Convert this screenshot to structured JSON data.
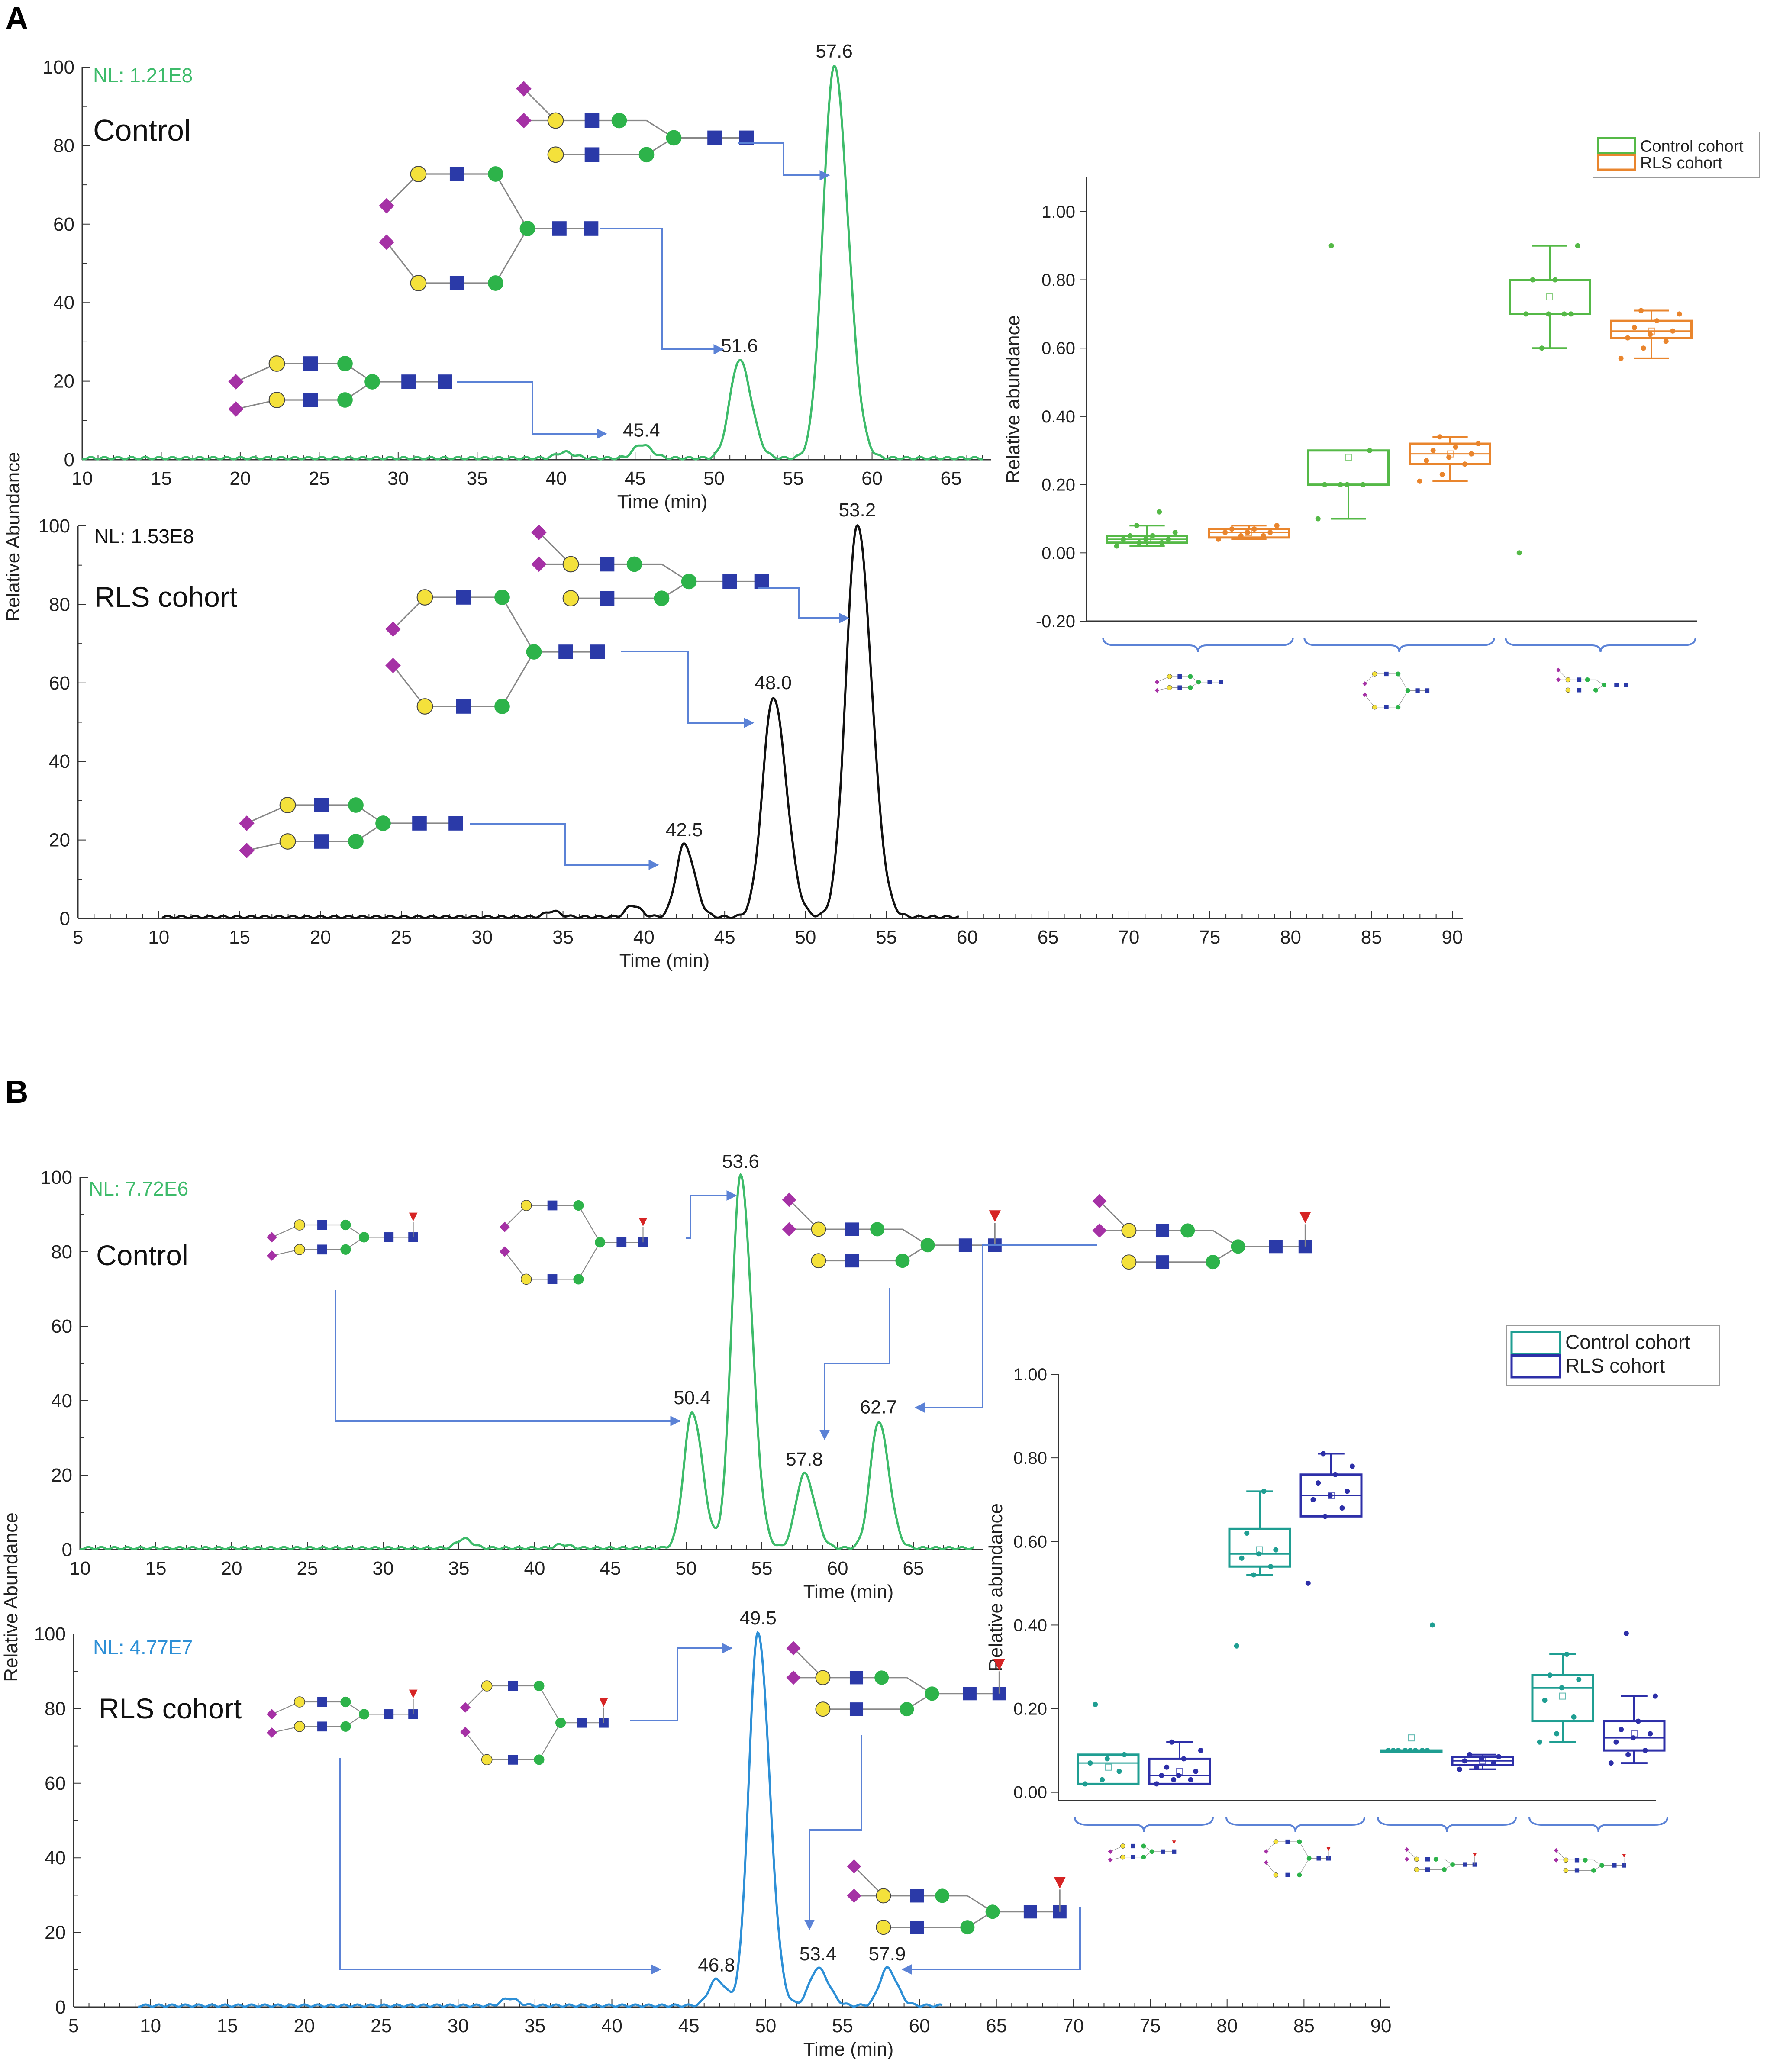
{
  "figure": {
    "panel_a_label": "A",
    "panel_b_label": "B"
  },
  "colors": {
    "control_green": "#3dbb6a",
    "rls_black": "#111111",
    "rls_blue": "#2d8fd6",
    "box_green": "#55b947",
    "box_orange": "#e9852d",
    "box_teal": "#1f9e92",
    "box_navy": "#2d2fa8",
    "arrow": "#5b82d6",
    "gal": "#f4e13b",
    "glcnac": "#2b3aa8",
    "man": "#2db34a",
    "sia": "#a531a5",
    "fuc": "#d62424"
  },
  "chart_data": [
    {
      "id": "A-control",
      "type": "line",
      "title": "",
      "nl_label": "NL: 1.21E8",
      "cohort_label": "Control",
      "xlabel": "Time (min)",
      "ylabel": "Relative Abundance",
      "xlim": [
        10,
        67
      ],
      "ylim": [
        0,
        100
      ],
      "xticks": [
        "10",
        "15",
        "20",
        "25",
        "30",
        "35",
        "40",
        "45",
        "50",
        "55",
        "60",
        "65"
      ],
      "yticks": [
        "0",
        "20",
        "40",
        "60",
        "80",
        "100"
      ],
      "peaks": [
        {
          "rt": 40.5,
          "height": 1.5,
          "width": 0.5,
          "label": ""
        },
        {
          "rt": 45.4,
          "height": 3.5,
          "width": 0.5,
          "label": "45.4"
        },
        {
          "rt": 51.6,
          "height": 25,
          "width": 0.6,
          "label": "51.6"
        },
        {
          "rt": 57.6,
          "height": 100,
          "width": 0.7,
          "label": "57.6"
        }
      ],
      "baseline_start": 10
    },
    {
      "id": "A-rls",
      "type": "line",
      "nl_label": "NL: 1.53E8",
      "cohort_label": "RLS cohort",
      "xlabel": "Time (min)",
      "ylabel": "Relative Abundance",
      "xlim": [
        5,
        90
      ],
      "ylim": [
        0,
        100
      ],
      "xticks": [
        "5",
        "10",
        "15",
        "20",
        "25",
        "30",
        "35",
        "40",
        "45",
        "50",
        "55",
        "60",
        "65",
        "70",
        "75",
        "80",
        "85",
        "90"
      ],
      "yticks": [
        "0",
        "20",
        "40",
        "60",
        "80",
        "100"
      ],
      "peaks": [
        {
          "rt": 34.3,
          "height": 1.5,
          "width": 0.4,
          "label": ""
        },
        {
          "rt": 39.3,
          "height": 3,
          "width": 0.4,
          "label": ""
        },
        {
          "rt": 42.5,
          "height": 18.5,
          "width": 0.5,
          "label": "42.5"
        },
        {
          "rt": 48.0,
          "height": 56,
          "width": 0.65,
          "label": "48.0"
        },
        {
          "rt": 53.2,
          "height": 100,
          "width": 0.7,
          "label": "53.2"
        }
      ],
      "baseline_start": 10.2,
      "baseline_end": 59.5
    },
    {
      "id": "A-box",
      "type": "box",
      "ylabel": "Relative abundance",
      "ylim": [
        -0.2,
        1.1
      ],
      "yticks": [
        "-0.20",
        "0.00",
        "0.20",
        "0.40",
        "0.60",
        "0.80",
        "1.00"
      ],
      "legend": [
        "Control cohort",
        "RLS cohort"
      ],
      "groups": [
        {
          "name": "biantennary disialylated glycan",
          "boxes": [
            {
              "cohort": "Control cohort",
              "q1": 0.03,
              "median": 0.04,
              "q3": 0.05,
              "min": 0.02,
              "max": 0.08,
              "mean": 0.04,
              "points": [
                0.02,
                0.03,
                0.03,
                0.04,
                0.04,
                0.04,
                0.05,
                0.05,
                0.06,
                0.08,
                0.12
              ]
            },
            {
              "cohort": "RLS cohort",
              "q1": 0.045,
              "median": 0.06,
              "q3": 0.07,
              "min": 0.04,
              "max": 0.08,
              "mean": 0.06,
              "points": [
                0.04,
                0.05,
                0.05,
                0.06,
                0.06,
                0.06,
                0.07,
                0.07,
                0.08
              ]
            }
          ]
        },
        {
          "name": "hybrid disialylated glycan",
          "boxes": [
            {
              "cohort": "Control cohort",
              "q1": 0.2,
              "median": 0.2,
              "q3": 0.3,
              "min": 0.1,
              "max": 0.3,
              "mean": 0.28,
              "points": [
                0.1,
                0.2,
                0.2,
                0.2,
                0.2,
                0.3,
                0.9
              ]
            },
            {
              "cohort": "RLS cohort",
              "q1": 0.26,
              "median": 0.29,
              "q3": 0.32,
              "min": 0.21,
              "max": 0.34,
              "mean": 0.29,
              "points": [
                0.21,
                0.23,
                0.26,
                0.27,
                0.28,
                0.29,
                0.3,
                0.31,
                0.32,
                0.34
              ]
            }
          ]
        },
        {
          "name": "biantennary glycan with extension",
          "boxes": [
            {
              "cohort": "Control cohort",
              "q1": 0.7,
              "median": 0.7,
              "q3": 0.8,
              "min": 0.6,
              "max": 0.9,
              "mean": 0.75,
              "points": [
                0.0,
                0.6,
                0.7,
                0.7,
                0.7,
                0.7,
                0.8,
                0.8,
                0.9
              ]
            },
            {
              "cohort": "RLS cohort",
              "q1": 0.63,
              "median": 0.65,
              "q3": 0.68,
              "min": 0.57,
              "max": 0.71,
              "mean": 0.65,
              "points": [
                0.57,
                0.6,
                0.62,
                0.63,
                0.64,
                0.65,
                0.66,
                0.68,
                0.7,
                0.71
              ]
            }
          ]
        }
      ]
    },
    {
      "id": "B-control",
      "type": "line",
      "nl_label": "NL: 7.72E6",
      "cohort_label": "Control",
      "xlabel": "Time (min)",
      "ylabel": "Relative Abundance",
      "xlim": [
        10,
        69
      ],
      "ylim": [
        0,
        100
      ],
      "xticks": [
        "10",
        "15",
        "20",
        "25",
        "30",
        "35",
        "40",
        "45",
        "50",
        "55",
        "60",
        "65"
      ],
      "yticks": [
        "0",
        "20",
        "40",
        "60",
        "80",
        "100"
      ],
      "peaks": [
        {
          "rt": 35.3,
          "height": 2.5,
          "width": 0.45,
          "label": ""
        },
        {
          "rt": 41.8,
          "height": 1,
          "width": 0.4,
          "label": ""
        },
        {
          "rt": 50.4,
          "height": 36.5,
          "width": 0.55,
          "label": "50.4"
        },
        {
          "rt": 53.6,
          "height": 100,
          "width": 0.6,
          "label": "53.6"
        },
        {
          "rt": 57.8,
          "height": 20,
          "width": 0.55,
          "label": "57.8"
        },
        {
          "rt": 62.7,
          "height": 34,
          "width": 0.55,
          "label": "62.7"
        }
      ],
      "baseline_start": 10
    },
    {
      "id": "B-rls",
      "type": "line",
      "nl_label": "NL: 4.77E7",
      "cohort_label": "RLS cohort",
      "xlabel": "Time (min)",
      "ylabel": "Relative Abundance",
      "xlim": [
        5,
        90
      ],
      "ylim": [
        0,
        100
      ],
      "xticks": [
        "5",
        "10",
        "15",
        "20",
        "25",
        "30",
        "35",
        "40",
        "45",
        "50",
        "55",
        "60",
        "65",
        "70",
        "75",
        "80",
        "85",
        "90"
      ],
      "yticks": [
        "0",
        "20",
        "40",
        "60",
        "80",
        "100"
      ],
      "peaks": [
        {
          "rt": 33.3,
          "height": 2,
          "width": 0.45,
          "label": ""
        },
        {
          "rt": 46.8,
          "height": 7,
          "width": 0.5,
          "label": "46.8"
        },
        {
          "rt": 49.5,
          "height": 100,
          "width": 0.6,
          "label": "49.5"
        },
        {
          "rt": 53.4,
          "height": 10,
          "width": 0.55,
          "label": "53.4"
        },
        {
          "rt": 57.9,
          "height": 10,
          "width": 0.5,
          "label": "57.9"
        }
      ],
      "baseline_start": 9.2,
      "baseline_end": 61.5
    },
    {
      "id": "B-box",
      "type": "box",
      "ylabel": "Relative abundance",
      "ylim": [
        -0.02,
        1.0
      ],
      "yticks": [
        "0.00",
        "0.20",
        "0.40",
        "0.60",
        "0.80",
        "1.00"
      ],
      "legend": [
        "Control cohort",
        "RLS cohort"
      ],
      "groups": [
        {
          "name": "core-fucosylated biantennary disialylated glycan",
          "boxes": [
            {
              "cohort": "Control cohort",
              "q1": 0.02,
              "median": 0.07,
              "q3": 0.09,
              "min": 0.02,
              "max": 0.09,
              "mean": 0.06,
              "points": [
                0.02,
                0.03,
                0.05,
                0.07,
                0.08,
                0.09,
                0.21
              ]
            },
            {
              "cohort": "RLS cohort",
              "q1": 0.02,
              "median": 0.04,
              "q3": 0.08,
              "min": 0.02,
              "max": 0.12,
              "mean": 0.05,
              "points": [
                0.02,
                0.03,
                0.03,
                0.04,
                0.04,
                0.05,
                0.06,
                0.08,
                0.1,
                0.12
              ]
            }
          ]
        },
        {
          "name": "core-fucosylated hybrid disialylated glycan",
          "boxes": [
            {
              "cohort": "Control cohort",
              "q1": 0.54,
              "median": 0.57,
              "q3": 0.63,
              "min": 0.52,
              "max": 0.72,
              "mean": 0.58,
              "points": [
                0.35,
                0.52,
                0.54,
                0.56,
                0.57,
                0.58,
                0.62,
                0.72
              ]
            },
            {
              "cohort": "RLS cohort",
              "q1": 0.66,
              "median": 0.71,
              "q3": 0.76,
              "min": 0.66,
              "max": 0.81,
              "mean": 0.71,
              "points": [
                0.5,
                0.66,
                0.68,
                0.7,
                0.71,
                0.72,
                0.74,
                0.76,
                0.78,
                0.81
              ]
            }
          ]
        },
        {
          "name": "core-fucosylated glycan isomer",
          "boxes": [
            {
              "cohort": "Control cohort",
              "q1": 0.1,
              "median": 0.1,
              "q3": 0.1,
              "min": 0.1,
              "max": 0.1,
              "mean": 0.13,
              "points": [
                0.1,
                0.1,
                0.1,
                0.1,
                0.1,
                0.1,
                0.1,
                0.1,
                0.4
              ]
            },
            {
              "cohort": "RLS cohort",
              "q1": 0.065,
              "median": 0.075,
              "q3": 0.085,
              "min": 0.055,
              "max": 0.09,
              "mean": 0.075,
              "points": [
                0.055,
                0.06,
                0.07,
                0.075,
                0.08,
                0.085,
                0.09
              ]
            }
          ]
        },
        {
          "name": "core-fucosylated biantennary glycan with extension",
          "boxes": [
            {
              "cohort": "Control cohort",
              "q1": 0.17,
              "median": 0.25,
              "q3": 0.28,
              "min": 0.12,
              "max": 0.33,
              "mean": 0.23,
              "points": [
                0.12,
                0.14,
                0.18,
                0.22,
                0.25,
                0.27,
                0.28,
                0.33
              ]
            },
            {
              "cohort": "RLS cohort",
              "q1": 0.1,
              "median": 0.13,
              "q3": 0.17,
              "min": 0.07,
              "max": 0.23,
              "mean": 0.14,
              "points": [
                0.07,
                0.09,
                0.1,
                0.12,
                0.13,
                0.14,
                0.15,
                0.17,
                0.23,
                0.38
              ]
            }
          ]
        }
      ]
    }
  ]
}
